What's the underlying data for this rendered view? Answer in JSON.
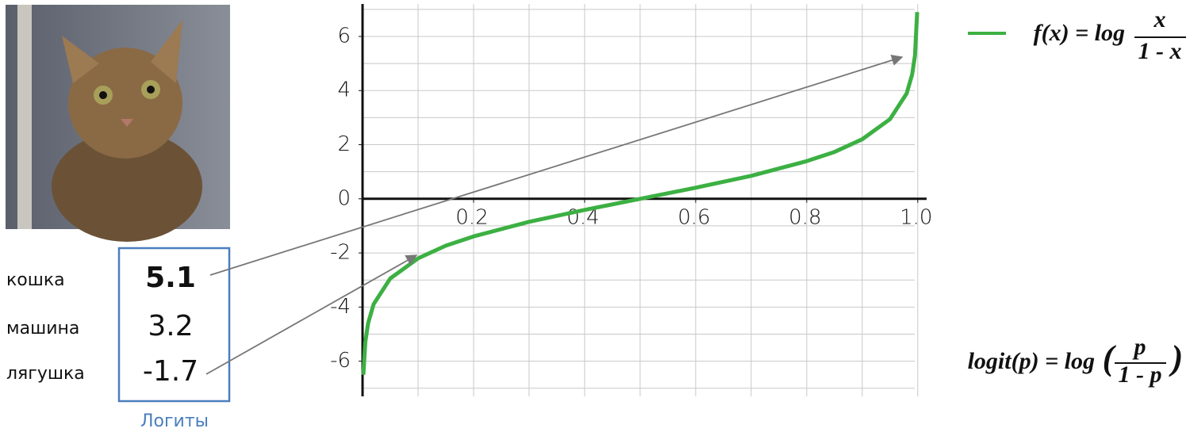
{
  "chart_data": {
    "type": "line",
    "x": [
      0.0015,
      0.005,
      0.01,
      0.02,
      0.05,
      0.1,
      0.15,
      0.2,
      0.3,
      0.4,
      0.5,
      0.6,
      0.7,
      0.8,
      0.85,
      0.9,
      0.95,
      0.98,
      0.99,
      0.995,
      0.999
    ],
    "series": [
      {
        "name": "f(x) = log",
        "color": "#3cb043",
        "values": [
          -6.5,
          -5.29,
          -4.6,
          -3.89,
          -2.94,
          -2.2,
          -1.73,
          -1.39,
          -0.85,
          -0.41,
          0,
          0.41,
          0.85,
          1.39,
          1.73,
          2.2,
          2.94,
          3.89,
          4.6,
          5.29,
          6.9
        ]
      }
    ],
    "legend_fraction": {
      "numerator": "x",
      "denominator": "1 - x"
    },
    "xlim": [
      0,
      1.016
    ],
    "ylim": [
      -7.3,
      7.2
    ],
    "xticks": [
      0.2,
      0.4,
      0.6,
      0.8,
      {
        "value": 1,
        "label": "1.0"
      }
    ],
    "yticks": [
      -6,
      -4,
      -2,
      0,
      2,
      4,
      6
    ],
    "grid": true,
    "xgrid_step": 0.1,
    "ygrid_step": 1
  },
  "logits": {
    "caption": "Логиты",
    "rows": [
      {
        "label": "кошка",
        "value": "5.1"
      },
      {
        "label": "машина",
        "value": "3.2"
      },
      {
        "label": "лягушка",
        "value": "-1.7"
      }
    ]
  },
  "formula": {
    "lhs": "logit(p) = log",
    "open": "(",
    "numerator": "p",
    "denominator": "1 - p",
    "close": ")"
  }
}
